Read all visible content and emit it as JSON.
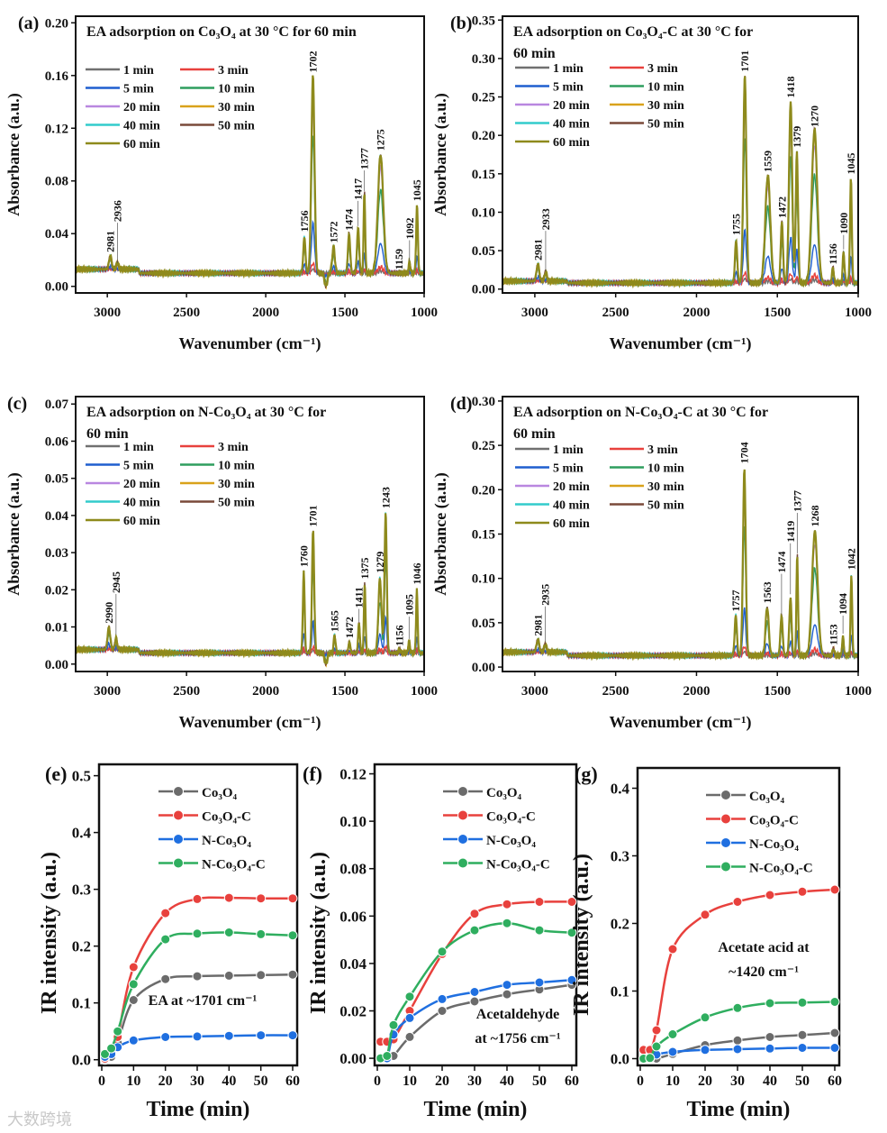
{
  "watermark": "大数跨境",
  "chart_data": [
    {
      "type": "line",
      "panel": "(a)",
      "title": "EA adsorption on Co₃O₄ at 30 °C for 60 min",
      "xlabel": "Wavenumber (cm⁻¹)",
      "ylabel": "Absorbance (a.u.)",
      "xlim": [
        3200,
        1000
      ],
      "ylim": [
        -0.005,
        0.205
      ],
      "xticks": [
        3000,
        2500,
        2000,
        1500,
        1000
      ],
      "yticks": [
        "0.00",
        "0.04",
        "0.08",
        "0.12",
        "0.16",
        "0.20"
      ],
      "baseline": 0.01,
      "peaks": [
        [
          2981,
          0.01,
          12
        ],
        [
          2936,
          0.005,
          10
        ],
        [
          1756,
          0.027,
          10
        ],
        [
          1702,
          0.15,
          14
        ],
        [
          1572,
          0.02,
          12
        ],
        [
          1474,
          0.03,
          10
        ],
        [
          1417,
          0.034,
          10
        ],
        [
          1377,
          0.062,
          7
        ],
        [
          1275,
          0.09,
          24
        ],
        [
          1159,
          0.0,
          8
        ],
        [
          1092,
          0.008,
          8
        ],
        [
          1045,
          0.051,
          8
        ],
        [
          1620,
          -0.01,
          12
        ]
      ],
      "peak_labels": [
        "2981",
        "2936",
        "1756",
        "1702",
        "1572",
        "1474",
        "1417",
        "1377",
        "1275",
        "1159",
        "1092",
        "1045"
      ]
    },
    {
      "type": "line",
      "panel": "(b)",
      "title": "EA adsorption on Co₃O₄-C at 30 °C for 60 min",
      "xlabel": "Wavenumber (cm⁻¹)",
      "ylabel": "Absorbance (a.u.)",
      "xlim": [
        3200,
        1000
      ],
      "ylim": [
        -0.005,
        0.355
      ],
      "xticks": [
        3000,
        2500,
        2000,
        1500,
        1000
      ],
      "yticks": [
        "0.00",
        "0.05",
        "0.10",
        "0.15",
        "0.20",
        "0.25",
        "0.30",
        "0.35"
      ],
      "baseline": 0.008,
      "peaks": [
        [
          2981,
          0.022,
          12
        ],
        [
          2933,
          0.012,
          10
        ],
        [
          1755,
          0.055,
          10
        ],
        [
          1701,
          0.27,
          13
        ],
        [
          1559,
          0.14,
          22
        ],
        [
          1472,
          0.08,
          10
        ],
        [
          1418,
          0.235,
          14
        ],
        [
          1379,
          0.17,
          10
        ],
        [
          1270,
          0.2,
          24
        ],
        [
          1156,
          0.02,
          8
        ],
        [
          1090,
          0.04,
          8
        ],
        [
          1045,
          0.135,
          8
        ]
      ],
      "peak_labels": [
        "2981",
        "2933",
        "1755",
        "1701",
        "1559",
        "1472",
        "1418",
        "1379",
        "1270",
        "1156",
        "1090",
        "1045"
      ]
    },
    {
      "type": "line",
      "panel": "(c)",
      "title": "EA adsorption on N-Co₃O₄ at 30 °C for 60 min",
      "xlabel": "Wavenumber (cm⁻¹)",
      "ylabel": "Absorbance (a.u.)",
      "xlim": [
        3200,
        1000
      ],
      "ylim": [
        -0.002,
        0.072
      ],
      "xticks": [
        3000,
        2500,
        2000,
        1500,
        1000
      ],
      "yticks": [
        "0.00",
        "0.01",
        "0.02",
        "0.03",
        "0.04",
        "0.05",
        "0.06",
        "0.07"
      ],
      "baseline": 0.003,
      "peaks": [
        [
          2990,
          0.006,
          12
        ],
        [
          2945,
          0.003,
          10
        ],
        [
          1760,
          0.022,
          8
        ],
        [
          1701,
          0.033,
          10
        ],
        [
          1565,
          0.005,
          8
        ],
        [
          1472,
          0.003,
          8
        ],
        [
          1411,
          0.008,
          8
        ],
        [
          1375,
          0.019,
          7
        ],
        [
          1279,
          0.02,
          14
        ],
        [
          1243,
          0.038,
          10
        ],
        [
          1156,
          0.001,
          8
        ],
        [
          1095,
          0.003,
          8
        ],
        [
          1046,
          0.017,
          7
        ],
        [
          1620,
          -0.003,
          12
        ]
      ],
      "peak_labels": [
        "2990",
        "2945",
        "1760",
        "1701",
        "1565",
        "1472",
        "1411",
        "1375",
        "1279",
        "1243",
        "1156",
        "1095",
        "1046"
      ]
    },
    {
      "type": "line",
      "panel": "(d)",
      "title": "EA adsorption on N-Co₃O₄-C at 30 °C for 60 min",
      "xlabel": "Wavenumber (cm⁻¹)",
      "ylabel": "Absorbance (a.u.)",
      "xlim": [
        3200,
        1000
      ],
      "ylim": [
        -0.005,
        0.305
      ],
      "xticks": [
        3000,
        2500,
        2000,
        1500,
        1000
      ],
      "yticks": [
        "0.00",
        "0.05",
        "0.10",
        "0.15",
        "0.20",
        "0.25",
        "0.30"
      ],
      "baseline": 0.013,
      "peaks": [
        [
          2981,
          0.014,
          12
        ],
        [
          2935,
          0.009,
          10
        ],
        [
          1757,
          0.045,
          10
        ],
        [
          1704,
          0.21,
          12
        ],
        [
          1563,
          0.055,
          14
        ],
        [
          1474,
          0.045,
          10
        ],
        [
          1419,
          0.065,
          10
        ],
        [
          1377,
          0.115,
          7
        ],
        [
          1268,
          0.14,
          24
        ],
        [
          1153,
          0.008,
          8
        ],
        [
          1094,
          0.02,
          8
        ],
        [
          1042,
          0.09,
          7
        ]
      ],
      "peak_labels": [
        "2981",
        "2935",
        "1757",
        "1704",
        "1563",
        "1474",
        "1419",
        "1377",
        "1268",
        "1153",
        "1094",
        "1042"
      ]
    }
  ],
  "spectra_legend": {
    "times": [
      "1 min",
      "3 min",
      "5 min",
      "10 min",
      "20 min",
      "30 min",
      "40 min",
      "50 min",
      "60 min"
    ],
    "fraction_of_final": [
      0.02,
      0.05,
      0.25,
      0.7,
      0.9,
      0.96,
      1.0,
      1.0,
      1.0
    ],
    "colors": [
      "#707070",
      "#e8413d",
      "#1f5fcf",
      "#2f9e5f",
      "#b987e0",
      "#d9a21b",
      "#33cccc",
      "#7a4a3a",
      "#8e8a1c"
    ]
  },
  "kinetics": [
    {
      "type": "line",
      "panel": "(e)",
      "annotation": [
        "EA at ~1701 cm⁻¹"
      ],
      "xlabel": "Time (min)",
      "ylabel": "IR intensity (a.u.)",
      "xlim": [
        0,
        60
      ],
      "ylim": [
        -0.01,
        0.52
      ],
      "xticks": [
        "0",
        "10",
        "20",
        "30",
        "40",
        "50",
        "60"
      ],
      "yticks": [
        "0.0",
        "0.1",
        "0.2",
        "0.3",
        "0.4",
        "0.5"
      ],
      "x": [
        1,
        3,
        5,
        10,
        20,
        30,
        40,
        50,
        60
      ],
      "series": [
        {
          "name": "Co₃O₄",
          "values": [
            0.0,
            0.005,
            0.03,
            0.105,
            0.142,
            0.147,
            0.148,
            0.149,
            0.15
          ]
        },
        {
          "name": "Co₃O₄-C",
          "values": [
            0.002,
            0.01,
            0.04,
            0.163,
            0.258,
            0.283,
            0.285,
            0.284,
            0.284
          ]
        },
        {
          "name": "N-Co₃O₄",
          "values": [
            0.005,
            0.01,
            0.022,
            0.034,
            0.04,
            0.041,
            0.042,
            0.043,
            0.043
          ]
        },
        {
          "name": "N-Co₃O₄-C",
          "values": [
            0.01,
            0.02,
            0.05,
            0.133,
            0.212,
            0.222,
            0.224,
            0.221,
            0.219
          ]
        }
      ]
    },
    {
      "type": "line",
      "panel": "(f)",
      "annotation": [
        "Acetaldehyde",
        "at ~1756 cm⁻¹"
      ],
      "xlabel": "Time (min)",
      "ylabel": "IR intensity (a.u.)",
      "xlim": [
        0,
        60
      ],
      "ylim": [
        -0.003,
        0.124
      ],
      "xticks": [
        "0",
        "10",
        "20",
        "30",
        "40",
        "50",
        "60"
      ],
      "yticks": [
        "0.00",
        "0.02",
        "0.04",
        "0.06",
        "0.08",
        "0.10",
        "0.12"
      ],
      "x": [
        1,
        3,
        5,
        10,
        20,
        30,
        40,
        50,
        60
      ],
      "series": [
        {
          "name": "Co₃O₄",
          "values": [
            0.0,
            0.0,
            0.001,
            0.009,
            0.02,
            0.024,
            0.027,
            0.029,
            0.031
          ]
        },
        {
          "name": "Co₃O₄-C",
          "values": [
            0.007,
            0.007,
            0.008,
            0.02,
            0.044,
            0.061,
            0.065,
            0.066,
            0.066
          ]
        },
        {
          "name": "N-Co₃O₄",
          "values": [
            0.0,
            0.0,
            0.01,
            0.017,
            0.025,
            0.028,
            0.031,
            0.032,
            0.033
          ]
        },
        {
          "name": "N-Co₃O₄-C",
          "values": [
            0.0,
            0.001,
            0.014,
            0.026,
            0.045,
            0.054,
            0.057,
            0.054,
            0.053
          ]
        }
      ]
    },
    {
      "type": "line",
      "panel": "(g)",
      "annotation": [
        "Acetate acid at",
        "~1420 cm⁻¹"
      ],
      "xlabel": "Time (min)",
      "ylabel": "IR intensity (a.u.)",
      "xlim": [
        0,
        60
      ],
      "ylim": [
        -0.01,
        0.43
      ],
      "xticks": [
        "0",
        "10",
        "20",
        "30",
        "40",
        "50",
        "60"
      ],
      "yticks": [
        "0.0",
        "0.1",
        "0.2",
        "0.3",
        "0.4"
      ],
      "x": [
        1,
        3,
        5,
        10,
        20,
        30,
        40,
        50,
        60
      ],
      "series": [
        {
          "name": "Co₃O₄",
          "values": [
            0.0,
            0.0,
            0.0,
            0.007,
            0.02,
            0.027,
            0.032,
            0.035,
            0.038
          ]
        },
        {
          "name": "Co₃O₄-C",
          "values": [
            0.013,
            0.013,
            0.042,
            0.162,
            0.213,
            0.232,
            0.242,
            0.247,
            0.25
          ]
        },
        {
          "name": "N-Co₃O₄",
          "values": [
            0.0,
            0.0,
            0.006,
            0.01,
            0.013,
            0.014,
            0.015,
            0.016,
            0.016
          ]
        },
        {
          "name": "N-Co₃O₄-C",
          "values": [
            0.0,
            0.001,
            0.018,
            0.036,
            0.061,
            0.075,
            0.082,
            0.083,
            0.084
          ]
        }
      ]
    }
  ],
  "kinetics_colors": [
    "#6b6b6b",
    "#e8413d",
    "#1f6fe0",
    "#2fae5f"
  ]
}
